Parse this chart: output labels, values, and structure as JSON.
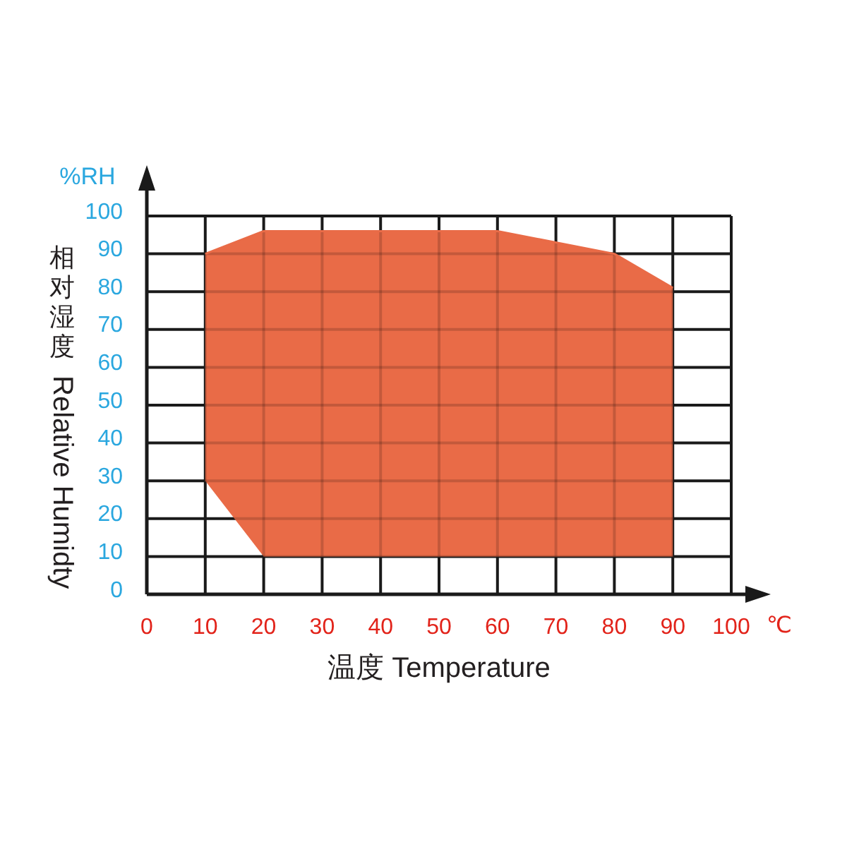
{
  "chart_data": {
    "type": "line",
    "xlabel": "温度 Temperature",
    "ylabel": "相对湿度 Relative Humidty",
    "annotations": [
      "%RH",
      "℃"
    ],
    "x": [
      10,
      20,
      60,
      80,
      90
    ],
    "series": [
      {
        "color": "#e96b47",
        "values": [
          90,
          96,
          96,
          90,
          81
        ],
        "lower": [
          30,
          10,
          10,
          10,
          10
        ],
        "upper": [
          90,
          96,
          96,
          90,
          81
        ]
      }
    ],
    "xlim": [
      0,
      100
    ],
    "xticks": [
      0,
      10,
      20,
      30,
      40,
      50,
      60,
      70,
      80,
      90,
      100
    ],
    "ylim": [
      0,
      100
    ],
    "yticks": [
      0,
      10,
      20,
      30,
      40,
      50,
      60,
      70,
      80,
      90,
      100
    ],
    "grid": true
  }
}
